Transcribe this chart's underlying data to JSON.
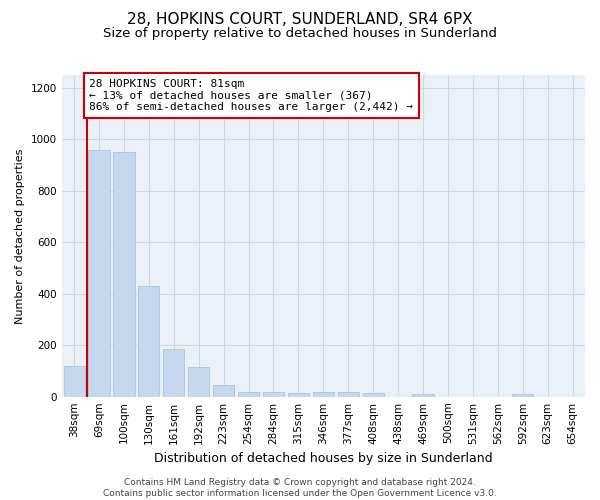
{
  "title1": "28, HOPKINS COURT, SUNDERLAND, SR4 6PX",
  "title2": "Size of property relative to detached houses in Sunderland",
  "xlabel": "Distribution of detached houses by size in Sunderland",
  "ylabel": "Number of detached properties",
  "categories": [
    "38sqm",
    "69sqm",
    "100sqm",
    "130sqm",
    "161sqm",
    "192sqm",
    "223sqm",
    "254sqm",
    "284sqm",
    "315sqm",
    "346sqm",
    "377sqm",
    "408sqm",
    "438sqm",
    "469sqm",
    "500sqm",
    "531sqm",
    "562sqm",
    "592sqm",
    "623sqm",
    "654sqm"
  ],
  "values": [
    120,
    960,
    950,
    430,
    185,
    115,
    45,
    20,
    20,
    15,
    20,
    20,
    15,
    0,
    10,
    0,
    0,
    0,
    10,
    0,
    0
  ],
  "bar_color": "#c5d8ed",
  "bar_edge_color": "#a8c4dc",
  "property_line_color": "#cc0000",
  "property_line_bar_index": 1,
  "annotation_text": "28 HOPKINS COURT: 81sqm\n← 13% of detached houses are smaller (367)\n86% of semi-detached houses are larger (2,442) →",
  "annotation_box_edgecolor": "#cc0000",
  "ylim": [
    0,
    1250
  ],
  "yticks": [
    0,
    200,
    400,
    600,
    800,
    1000,
    1200
  ],
  "footer_text": "Contains HM Land Registry data © Crown copyright and database right 2024.\nContains public sector information licensed under the Open Government Licence v3.0.",
  "bg_color": "#ffffff",
  "plot_bg_color": "#eaf0f8",
  "grid_color": "#c8d8e8",
  "title1_fontsize": 11,
  "title2_fontsize": 9.5,
  "xlabel_fontsize": 9,
  "ylabel_fontsize": 8,
  "tick_fontsize": 7.5,
  "annotation_fontsize": 8,
  "footer_fontsize": 6.5
}
